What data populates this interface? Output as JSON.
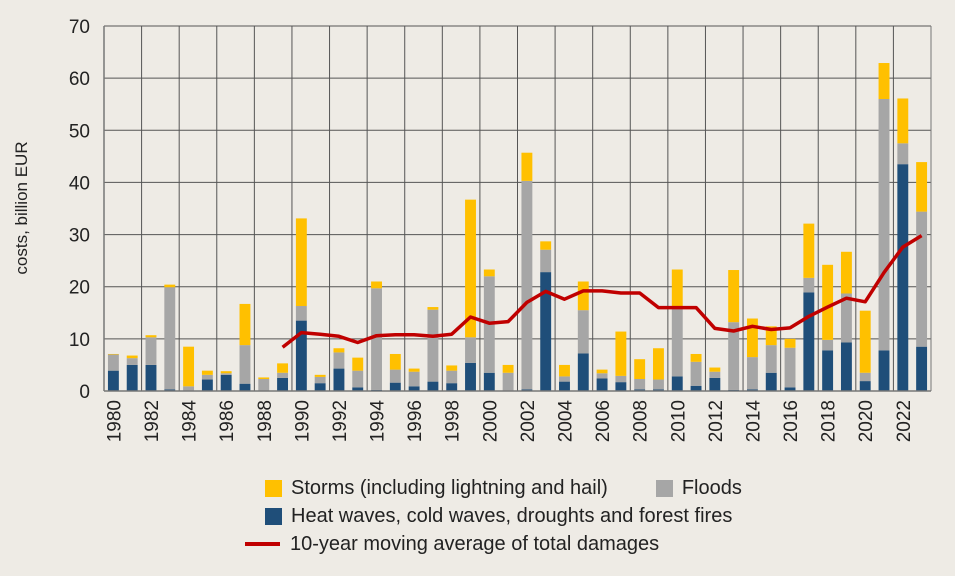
{
  "chart_data": {
    "type": "bar",
    "stacked": true,
    "title": "",
    "xlabel": "",
    "ylabel": "costs, billion EUR",
    "ylim": [
      0,
      70
    ],
    "yticks": [
      0,
      10,
      20,
      30,
      40,
      50,
      60,
      70
    ],
    "grid": true,
    "legend_position": "bottom",
    "categories": [
      1980,
      1981,
      1982,
      1983,
      1984,
      1985,
      1986,
      1987,
      1988,
      1989,
      1990,
      1991,
      1992,
      1993,
      1994,
      1995,
      1996,
      1997,
      1998,
      1999,
      2000,
      2001,
      2002,
      2003,
      2004,
      2005,
      2006,
      2007,
      2008,
      2009,
      2010,
      2011,
      2012,
      2013,
      2014,
      2015,
      2016,
      2017,
      2018,
      2019,
      2020,
      2021,
      2022,
      2023
    ],
    "xtick_labels": [
      "1980",
      "1982",
      "1984",
      "1986",
      "1988",
      "1990",
      "1992",
      "1994",
      "1996",
      "1998",
      "2000",
      "2002",
      "2004",
      "2006",
      "2008",
      "2010",
      "2012",
      "2014",
      "2016",
      "2018",
      "2020",
      "2022"
    ],
    "series": [
      {
        "name": "Heat waves, cold waves, droughts and forest fires",
        "color": "#1f4e79",
        "values": [
          3.9,
          5.0,
          5.0,
          0.3,
          0.1,
          2.2,
          3.1,
          1.4,
          0.1,
          2.5,
          13.5,
          1.5,
          4.3,
          0.7,
          0.2,
          1.6,
          0.9,
          1.8,
          1.5,
          5.4,
          3.5,
          0.1,
          0.3,
          22.8,
          1.8,
          7.2,
          2.4,
          1.7,
          0.3,
          0.3,
          2.8,
          1.0,
          2.5,
          0.2,
          0.3,
          3.5,
          0.7,
          18.9,
          7.8,
          9.3,
          1.9,
          7.8,
          43.5,
          8.5
        ]
      },
      {
        "name": "Floods",
        "color": "#a6a6a6",
        "values": [
          3.1,
          1.3,
          5.3,
          19.6,
          0.8,
          0.9,
          0.3,
          7.4,
          2.2,
          1.0,
          2.8,
          1.2,
          3.1,
          3.2,
          19.5,
          2.5,
          2.8,
          13.8,
          2.4,
          4.9,
          18.5,
          3.4,
          40.0,
          4.3,
          1.0,
          8.3,
          1.0,
          1.2,
          2.0,
          1.9,
          13.3,
          4.6,
          1.2,
          13.0,
          6.2,
          5.3,
          7.6,
          2.8,
          2.0,
          9.4,
          1.6,
          48.2,
          4.0,
          25.9
        ]
      },
      {
        "name": "Storms (including lightning and hail)",
        "color": "#ffc000",
        "values": [
          0.1,
          0.5,
          0.4,
          0.5,
          7.6,
          0.8,
          0.4,
          7.9,
          0.3,
          1.8,
          16.8,
          0.4,
          0.8,
          2.5,
          1.3,
          3.0,
          0.6,
          0.5,
          1.0,
          26.4,
          1.3,
          1.5,
          5.4,
          1.6,
          2.2,
          5.5,
          0.7,
          8.5,
          3.8,
          6.0,
          7.2,
          1.5,
          0.8,
          10.0,
          7.4,
          3.6,
          1.7,
          10.4,
          14.4,
          8.0,
          11.9,
          6.9,
          8.6,
          9.5
        ]
      }
    ],
    "line": {
      "name": "10-year moving average of total damages",
      "color": "#c00000",
      "x": [
        1989,
        1990,
        1991,
        1992,
        1993,
        1994,
        1995,
        1996,
        1997,
        1998,
        1999,
        2000,
        2001,
        2002,
        2003,
        2004,
        2005,
        2006,
        2007,
        2008,
        2009,
        2010,
        2011,
        2012,
        2013,
        2014,
        2015,
        2016,
        2017,
        2018,
        2019,
        2020,
        2021,
        2022,
        2023
      ],
      "values": [
        8.4,
        11.2,
        10.9,
        10.5,
        9.3,
        10.6,
        10.8,
        10.8,
        10.5,
        10.9,
        14.2,
        13.0,
        13.3,
        17.0,
        19.1,
        17.6,
        19.2,
        19.2,
        18.8,
        18.8,
        16.0,
        16.0,
        16.0,
        12.0,
        11.5,
        12.4,
        11.8,
        12.1,
        14.3,
        16.1,
        17.8,
        17.1,
        22.7,
        27.6,
        29.8
      ]
    }
  },
  "legend": {
    "storms": "Storms (including lightning and hail)",
    "floods": "Floods",
    "heat": "Heat waves, cold waves, droughts and forest fires",
    "avg": "10-year moving average of total damages"
  }
}
